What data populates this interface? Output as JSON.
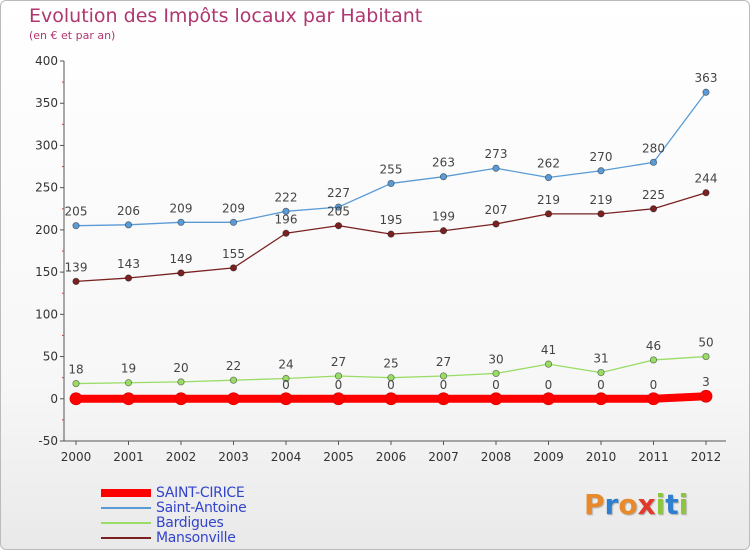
{
  "title": "Evolution des Impôts locaux par Habitant",
  "subtitle": "(en € et par an)",
  "logo": {
    "text": "Proxiti",
    "letters": [
      {
        "ch": "P",
        "color": "#e8892b"
      },
      {
        "ch": "r",
        "color": "#2f7fcf"
      },
      {
        "ch": "o",
        "color": "#e8892b"
      },
      {
        "ch": "x",
        "color": "#e23a2a"
      },
      {
        "ch": "i",
        "color": "#8cc63f"
      },
      {
        "ch": "t",
        "color": "#2f7fcf"
      },
      {
        "ch": "i",
        "color": "#8cc63f"
      }
    ]
  },
  "chart_data": {
    "type": "line",
    "title": "Evolution des Impôts locaux par Habitant",
    "subtitle": "(en € et par an)",
    "x": [
      "2000",
      "2001",
      "2002",
      "2003",
      "2004",
      "2005",
      "2006",
      "2007",
      "2008",
      "2009",
      "2010",
      "2011",
      "2012"
    ],
    "ylim": [
      -50,
      400
    ],
    "yticks": [
      -50,
      0,
      50,
      100,
      150,
      200,
      250,
      300,
      350,
      400
    ],
    "grid": false,
    "legend_position": "bottom-left",
    "series": [
      {
        "name": "SAINT-CIRICE",
        "color": "#ff0000",
        "values": [
          0,
          0,
          0,
          0,
          0,
          0,
          0,
          0,
          0,
          0,
          0,
          0,
          3
        ],
        "labels_shown": [
          false,
          false,
          false,
          false,
          true,
          true,
          true,
          true,
          true,
          true,
          true,
          true,
          true
        ]
      },
      {
        "name": "Saint-Antoine",
        "color": "#5b9bd5",
        "values": [
          205,
          206,
          209,
          209,
          222,
          227,
          255,
          263,
          273,
          262,
          270,
          280,
          363
        ]
      },
      {
        "name": "Bardigues",
        "color": "#99dd66",
        "values": [
          18,
          19,
          20,
          22,
          24,
          27,
          25,
          27,
          30,
          41,
          31,
          46,
          50
        ]
      },
      {
        "name": "Mansonville",
        "color": "#7a2222",
        "values": [
          139,
          143,
          149,
          155,
          196,
          205,
          195,
          199,
          207,
          219,
          219,
          225,
          244
        ]
      }
    ]
  }
}
